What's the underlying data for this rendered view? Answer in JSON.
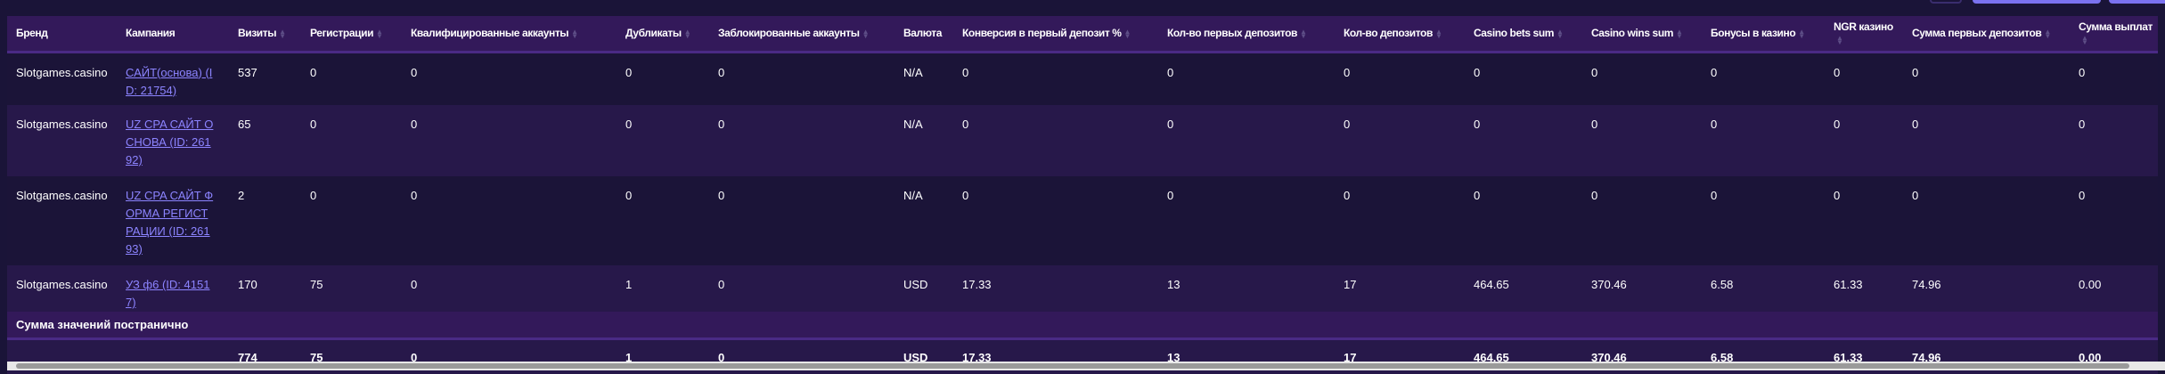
{
  "columns": [
    "Бренд",
    "Кампания",
    "Визиты",
    "Регистрации",
    "Квалифицированные аккаунты",
    "Дубликаты",
    "Заблокированные аккаунты",
    "Валюта",
    "Конверсия в первый депозит %",
    "Кол-во первых депозитов",
    "Кол-во депозитов",
    "Casino bets sum",
    "Casino wins sum",
    "Бонусы в казино",
    "NGR казино",
    "Сумма первых депозитов",
    "Сумма выплат"
  ],
  "rows": [
    [
      "Slotgames.casino",
      "САЙТ(основа) (ID: 21754)",
      "537",
      "0",
      "0",
      "0",
      "0",
      "N/A",
      "0",
      "0",
      "0",
      "0",
      "0",
      "0",
      "0",
      "0",
      "0"
    ],
    [
      "Slotgames.casino",
      "UZ CPA САЙТ ОСНОВА (ID: 26192)",
      "65",
      "0",
      "0",
      "0",
      "0",
      "N/A",
      "0",
      "0",
      "0",
      "0",
      "0",
      "0",
      "0",
      "0",
      "0"
    ],
    [
      "Slotgames.casino",
      "UZ CPA САЙТ ФОРМА РЕГИСТРАЦИИ (ID: 26193)",
      "2",
      "0",
      "0",
      "0",
      "0",
      "N/A",
      "0",
      "0",
      "0",
      "0",
      "0",
      "0",
      "0",
      "0",
      "0"
    ],
    [
      "Slotgames.casino",
      "УЗ ф6 (ID: 41517)",
      "170",
      "75",
      "0",
      "1",
      "0",
      "USD",
      "17.33",
      "13",
      "17",
      "464.65",
      "370.46",
      "6.58",
      "61.33",
      "74.96",
      "0.00"
    ]
  ],
  "summary_label": "Сумма значений постранично",
  "totals": [
    "",
    "",
    "774",
    "75",
    "0",
    "1",
    "0",
    "USD",
    "17.33",
    "13",
    "17",
    "464.65",
    "370.46",
    "6.58",
    "61.33",
    "74.96",
    "0.00"
  ],
  "colors": {
    "background": "#1a1438",
    "header": "#33195a",
    "link": "#8c84ff",
    "accent": "#7b72f0"
  }
}
